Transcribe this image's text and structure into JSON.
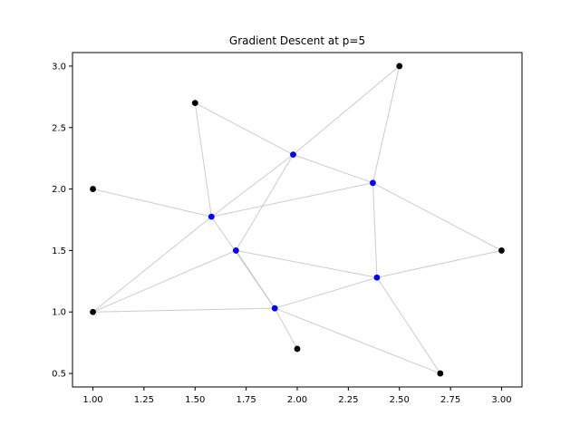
{
  "chart_data": {
    "type": "scatter",
    "title": "Gradient Descent at p=5",
    "xlabel": "",
    "ylabel": "",
    "xlim": [
      0.9,
      3.1
    ],
    "ylim": [
      0.39,
      3.11
    ],
    "x_ticks": [
      1.0,
      1.25,
      1.5,
      1.75,
      2.0,
      2.25,
      2.5,
      2.75,
      3.0
    ],
    "x_tick_labels": [
      "1.00",
      "1.25",
      "1.50",
      "1.75",
      "2.00",
      "2.25",
      "2.50",
      "2.75",
      "3.00"
    ],
    "y_ticks": [
      0.5,
      1.0,
      1.5,
      2.0,
      2.5,
      3.0
    ],
    "y_tick_labels": [
      "0.5",
      "1.0",
      "1.5",
      "2.0",
      "2.5",
      "3.0"
    ],
    "grid": false,
    "series": [
      {
        "color": "#000000",
        "points": [
          [
            1.0,
            1.0
          ],
          [
            1.0,
            2.0
          ],
          [
            1.5,
            2.7
          ],
          [
            2.5,
            3.0
          ],
          [
            3.0,
            1.5
          ],
          [
            2.7,
            0.5
          ],
          [
            2.0,
            0.7
          ]
        ]
      },
      {
        "color": "#0000ff",
        "points": [
          [
            1.58,
            1.775
          ],
          [
            1.7,
            1.5
          ],
          [
            1.98,
            2.28
          ],
          [
            2.37,
            2.05
          ],
          [
            2.39,
            1.28
          ],
          [
            1.89,
            1.03
          ]
        ]
      }
    ],
    "edge_color": "#bbbbbb",
    "edges": [
      [
        [
          1.0,
          2.0
        ],
        [
          1.58,
          1.775
        ]
      ],
      [
        [
          1.5,
          2.7
        ],
        [
          1.58,
          1.775
        ]
      ],
      [
        [
          1.5,
          2.7
        ],
        [
          1.98,
          2.28
        ]
      ],
      [
        [
          1.0,
          1.0
        ],
        [
          1.58,
          1.775
        ]
      ],
      [
        [
          1.0,
          1.0
        ],
        [
          1.7,
          1.5
        ]
      ],
      [
        [
          1.0,
          1.0
        ],
        [
          1.89,
          1.03
        ]
      ],
      [
        [
          1.58,
          1.775
        ],
        [
          1.98,
          2.28
        ]
      ],
      [
        [
          1.58,
          1.775
        ],
        [
          2.37,
          2.05
        ]
      ],
      [
        [
          1.58,
          1.775
        ],
        [
          1.89,
          1.03
        ]
      ],
      [
        [
          1.7,
          1.5
        ],
        [
          1.98,
          2.28
        ]
      ],
      [
        [
          1.7,
          1.5
        ],
        [
          1.89,
          1.03
        ]
      ],
      [
        [
          1.7,
          1.5
        ],
        [
          2.39,
          1.28
        ]
      ],
      [
        [
          1.98,
          2.28
        ],
        [
          2.5,
          3.0
        ]
      ],
      [
        [
          1.98,
          2.28
        ],
        [
          2.37,
          2.05
        ]
      ],
      [
        [
          2.37,
          2.05
        ],
        [
          2.5,
          3.0
        ]
      ],
      [
        [
          2.37,
          2.05
        ],
        [
          3.0,
          1.5
        ]
      ],
      [
        [
          2.37,
          2.05
        ],
        [
          2.39,
          1.28
        ]
      ],
      [
        [
          2.39,
          1.28
        ],
        [
          3.0,
          1.5
        ]
      ],
      [
        [
          2.39,
          1.28
        ],
        [
          2.7,
          0.5
        ]
      ],
      [
        [
          2.39,
          1.28
        ],
        [
          1.89,
          1.03
        ]
      ],
      [
        [
          1.89,
          1.03
        ],
        [
          2.7,
          0.5
        ]
      ],
      [
        [
          1.89,
          1.03
        ],
        [
          2.0,
          0.7
        ]
      ]
    ]
  }
}
